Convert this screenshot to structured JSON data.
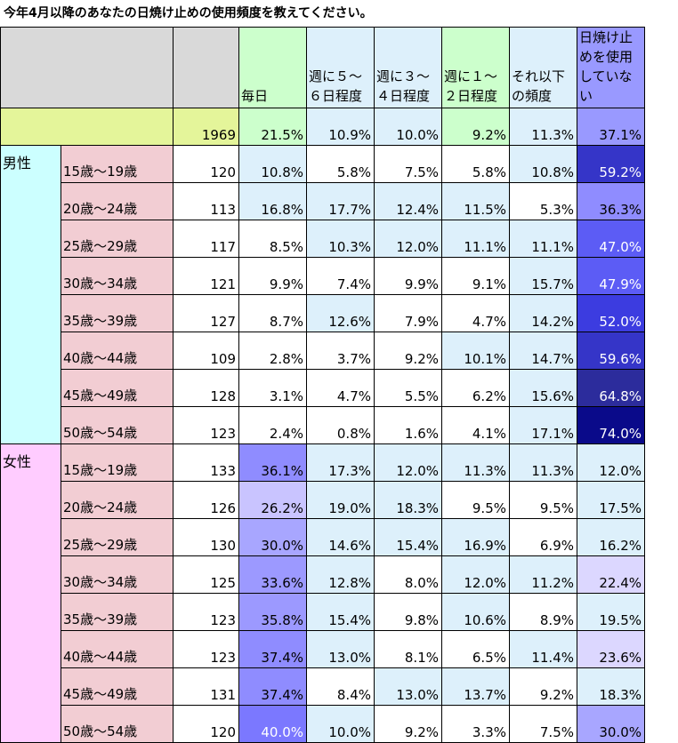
{
  "title": "今年4月以降のあなたの日焼け止めの使用頻度を教えてください。",
  "headers": [
    "毎日",
    "週に５～６日程度",
    "週に３～４日程度",
    "週に１～２日程度",
    "それ以下の頻度",
    "日焼け止めを使用していない"
  ],
  "total": {
    "n": "1969",
    "values": [
      "21.5%",
      "10.9%",
      "10.0%",
      "9.2%",
      "11.3%",
      "37.1%"
    ]
  },
  "groups": [
    {
      "label": "男性",
      "rows": [
        {
          "age": "15歳～19歳",
          "n": "120",
          "values": [
            "10.8%",
            "5.8%",
            "7.5%",
            "5.8%",
            "10.8%",
            "59.2%"
          ]
        },
        {
          "age": "20歳～24歳",
          "n": "113",
          "values": [
            "16.8%",
            "17.7%",
            "12.4%",
            "11.5%",
            "5.3%",
            "36.3%"
          ]
        },
        {
          "age": "25歳～29歳",
          "n": "117",
          "values": [
            "8.5%",
            "10.3%",
            "12.0%",
            "11.1%",
            "11.1%",
            "47.0%"
          ]
        },
        {
          "age": "30歳～34歳",
          "n": "121",
          "values": [
            "9.9%",
            "7.4%",
            "9.9%",
            "9.1%",
            "15.7%",
            "47.9%"
          ]
        },
        {
          "age": "35歳～39歳",
          "n": "127",
          "values": [
            "8.7%",
            "12.6%",
            "7.9%",
            "4.7%",
            "14.2%",
            "52.0%"
          ]
        },
        {
          "age": "40歳～44歳",
          "n": "109",
          "values": [
            "2.8%",
            "3.7%",
            "9.2%",
            "10.1%",
            "14.7%",
            "59.6%"
          ]
        },
        {
          "age": "45歳～49歳",
          "n": "128",
          "values": [
            "3.1%",
            "4.7%",
            "5.5%",
            "6.2%",
            "15.6%",
            "64.8%"
          ]
        },
        {
          "age": "50歳～54歳",
          "n": "123",
          "values": [
            "2.4%",
            "0.8%",
            "1.6%",
            "4.1%",
            "17.1%",
            "74.0%"
          ]
        }
      ]
    },
    {
      "label": "女性",
      "rows": [
        {
          "age": "15歳～19歳",
          "n": "133",
          "values": [
            "36.1%",
            "17.3%",
            "12.0%",
            "11.3%",
            "11.3%",
            "12.0%"
          ]
        },
        {
          "age": "20歳～24歳",
          "n": "126",
          "values": [
            "26.2%",
            "19.0%",
            "18.3%",
            "9.5%",
            "9.5%",
            "17.5%"
          ]
        },
        {
          "age": "25歳～29歳",
          "n": "130",
          "values": [
            "30.0%",
            "14.6%",
            "15.4%",
            "16.9%",
            "6.9%",
            "16.2%"
          ]
        },
        {
          "age": "30歳～34歳",
          "n": "125",
          "values": [
            "33.6%",
            "12.8%",
            "8.0%",
            "12.0%",
            "11.2%",
            "22.4%"
          ]
        },
        {
          "age": "35歳～39歳",
          "n": "123",
          "values": [
            "35.8%",
            "15.4%",
            "9.8%",
            "10.6%",
            "8.9%",
            "19.5%"
          ]
        },
        {
          "age": "40歳～44歳",
          "n": "123",
          "values": [
            "37.4%",
            "13.0%",
            "8.1%",
            "6.5%",
            "11.4%",
            "23.6%"
          ]
        },
        {
          "age": "45歳～49歳",
          "n": "131",
          "values": [
            "37.4%",
            "8.4%",
            "13.0%",
            "13.7%",
            "9.2%",
            "18.3%"
          ]
        },
        {
          "age": "50歳～54歳",
          "n": "120",
          "values": [
            "40.0%",
            "10.0%",
            "9.2%",
            "3.3%",
            "7.5%",
            "30.0%"
          ]
        }
      ]
    }
  ],
  "colors": {
    "male_label_bg": "#ccffff",
    "female_label_bg": "#ffccff",
    "age_bg": "#f2cdd3",
    "total_label_bg": "#e4f59a",
    "header_bg": "#d9d9d9",
    "header_col_bg": [
      "#ccffcc",
      "#ddf0fb",
      "#ddf0fb",
      "#ccffcc",
      "#ddf0fb",
      "#9999ff"
    ]
  }
}
